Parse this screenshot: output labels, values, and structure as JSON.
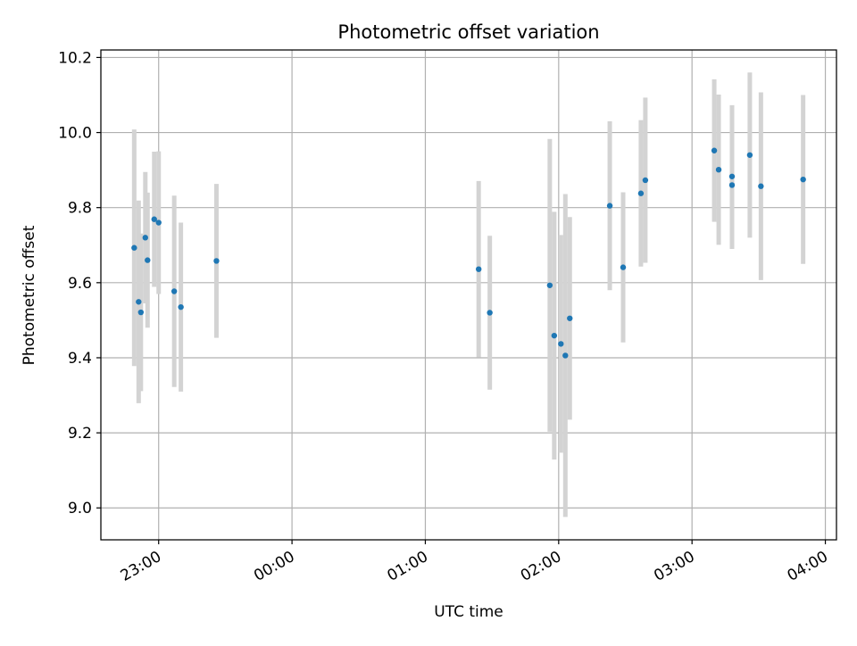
{
  "chart_data": {
    "type": "scatter",
    "title": "Photometric offset variation",
    "xlabel": "UTC time",
    "ylabel": "Photometric offset",
    "x_axis_kind": "time",
    "xlim": [
      "22:34",
      "04:05"
    ],
    "ylim": [
      8.915,
      10.22
    ],
    "xticks": [
      "23:00",
      "00:00",
      "01:00",
      "02:00",
      "03:00",
      "04:00"
    ],
    "yticks": [
      "9.0",
      "9.2",
      "9.4",
      "9.6",
      "9.8",
      "10.0",
      "10.2"
    ],
    "grid": true,
    "colors": {
      "point": "#1f77b4",
      "errorbar": "#d3d3d3",
      "grid": "#b0b0b0"
    },
    "series": [
      {
        "points": [
          {
            "x": "22:49",
            "y": 9.693,
            "yerr": 0.315
          },
          {
            "x": "22:51",
            "y": 9.549,
            "yerr": 0.27
          },
          {
            "x": "22:52",
            "y": 9.521,
            "yerr": 0.21
          },
          {
            "x": "22:54",
            "y": 9.72,
            "yerr": 0.175
          },
          {
            "x": "22:55",
            "y": 9.66,
            "yerr": 0.18
          },
          {
            "x": "22:58",
            "y": 9.769,
            "yerr": 0.18
          },
          {
            "x": "23:00",
            "y": 9.76,
            "yerr": 0.19
          },
          {
            "x": "23:07",
            "y": 9.577,
            "yerr": 0.255
          },
          {
            "x": "23:10",
            "y": 9.535,
            "yerr": 0.225
          },
          {
            "x": "23:26",
            "y": 9.658,
            "yerr": 0.205
          },
          {
            "x": "01:24",
            "y": 9.636,
            "yerr": 0.235
          },
          {
            "x": "01:29",
            "y": 9.52,
            "yerr": 0.205
          },
          {
            "x": "01:56",
            "y": 9.593,
            "yerr": 0.39
          },
          {
            "x": "01:58",
            "y": 9.459,
            "yerr": 0.33
          },
          {
            "x": "02:01",
            "y": 9.437,
            "yerr": 0.29
          },
          {
            "x": "02:03",
            "y": 9.406,
            "yerr": 0.43
          },
          {
            "x": "02:05",
            "y": 9.505,
            "yerr": 0.27
          },
          {
            "x": "02:23",
            "y": 9.805,
            "yerr": 0.225
          },
          {
            "x": "02:29",
            "y": 9.641,
            "yerr": 0.2
          },
          {
            "x": "02:37",
            "y": 9.838,
            "yerr": 0.195
          },
          {
            "x": "02:39",
            "y": 9.873,
            "yerr": 0.22
          },
          {
            "x": "03:10",
            "y": 9.952,
            "yerr": 0.19
          },
          {
            "x": "03:12",
            "y": 9.901,
            "yerr": 0.2
          },
          {
            "x": "03:18",
            "y": 9.883,
            "yerr": 0.19
          },
          {
            "x": "03:18",
            "y": 9.86,
            "yerr": 0.17
          },
          {
            "x": "03:26",
            "y": 9.94,
            "yerr": 0.22
          },
          {
            "x": "03:31",
            "y": 9.857,
            "yerr": 0.25
          },
          {
            "x": "03:50",
            "y": 9.875,
            "yerr": 0.225
          }
        ]
      }
    ]
  }
}
